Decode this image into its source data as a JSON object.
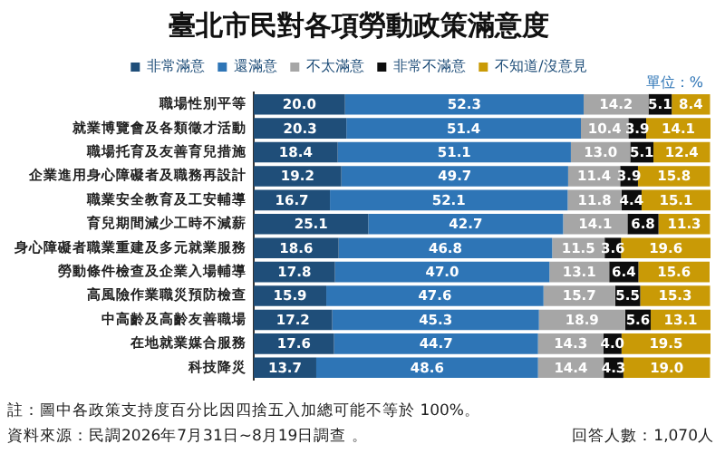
{
  "chart_data": {
    "type": "bar",
    "orientation": "horizontal",
    "stacked": true,
    "title": "臺北市民對各項勞動政策滿意度",
    "categories": [
      "職場性別平等",
      "就業博覽會及各類徵才活動",
      "職場托育及友善育兒措施",
      "企業進用身心障礙者及職務再設計",
      "職業安全教育及工安輔導",
      "育兒期間減少工時不減薪",
      "身心障礙者職業重建及多元就業服務",
      "勞動條件檢查及企業入場輔導",
      "高風險作業職災預防檢查",
      "中高齡及高齡友善職場",
      "在地就業媒合服務",
      "科技降災"
    ],
    "series": [
      {
        "name": "非常滿意",
        "color": "#1f4e79",
        "values": [
          20.0,
          20.3,
          18.4,
          19.2,
          16.7,
          25.1,
          18.6,
          17.8,
          15.9,
          17.2,
          17.6,
          13.7
        ],
        "value_labels": [
          "20.0",
          "20.3",
          "18.4",
          "19.2",
          "16.7",
          "25.1",
          "18.6",
          "17.8",
          "15.9",
          "17.2",
          "17.6",
          "13.7"
        ]
      },
      {
        "name": "還滿意",
        "color": "#2e75b6",
        "values": [
          52.3,
          51.4,
          51.1,
          49.7,
          52.1,
          42.7,
          46.8,
          47.0,
          47.6,
          45.3,
          44.7,
          48.6
        ],
        "value_labels": [
          "52.3",
          "51.4",
          "51.1",
          "49.7",
          "52.1",
          "42.7",
          "46.8",
          "47.0",
          "47.6",
          "45.3",
          "44.7",
          "48.6"
        ]
      },
      {
        "name": "不太滿意",
        "color": "#a6a6a6",
        "values": [
          14.2,
          10.4,
          13.0,
          11.4,
          11.8,
          14.1,
          11.5,
          13.1,
          15.7,
          18.9,
          14.3,
          14.4
        ],
        "value_labels": [
          "14.2",
          "10.4",
          "13.0",
          "11.4",
          "11.8",
          "14.1",
          "11.5",
          "13.1",
          "15.7",
          "18.9",
          "14.3",
          "14.4"
        ]
      },
      {
        "name": "非常不滿意",
        "color": "#0d0d0d",
        "values": [
          5.1,
          3.9,
          5.1,
          3.9,
          4.4,
          6.8,
          3.6,
          6.4,
          5.5,
          5.6,
          4.0,
          4.3
        ],
        "value_labels": [
          "5.1",
          "3.9",
          "5.1",
          "3.9",
          "4.4",
          "6.8",
          "3.6",
          "6.4",
          "5.5",
          "5.6",
          "4.0",
          "4.3"
        ]
      },
      {
        "name": "不知道/沒意見",
        "color": "#c99a06",
        "values": [
          8.4,
          14.1,
          12.4,
          15.8,
          15.1,
          11.3,
          19.6,
          15.6,
          15.3,
          13.1,
          19.5,
          19.0
        ],
        "value_labels": [
          "8.4",
          "14.1",
          "12.4",
          "15.8",
          "15.1",
          "11.3",
          "19.6",
          "15.6",
          "15.3",
          "13.1",
          "19.5",
          "19.0"
        ]
      }
    ],
    "legend": "top",
    "grid": false,
    "tick_labels": "y",
    "annotations": [
      "單位：%",
      "註：圖中各政策支持度百分比因四捨五入加總可能不等於 100%。",
      "資料來源：民調2026年7月31日~8月19日調查 。",
      "回答人數：1,070人"
    ]
  }
}
